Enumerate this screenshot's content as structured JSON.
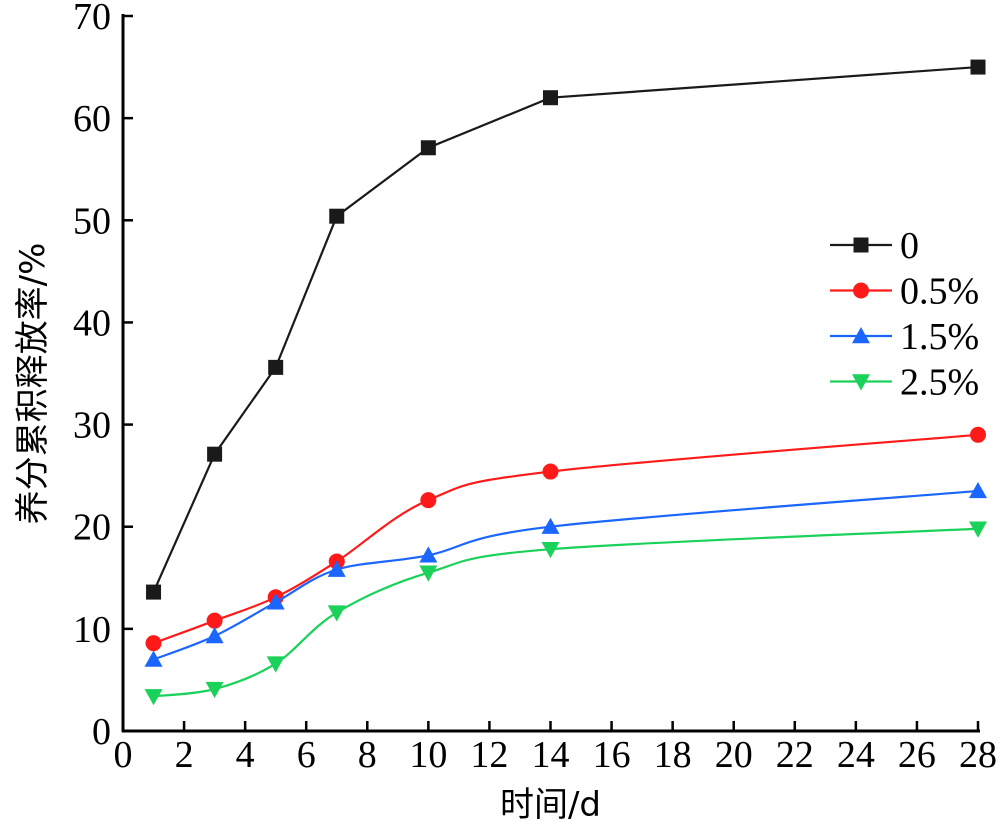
{
  "chart_data": {
    "type": "line",
    "title": "",
    "xlabel": "时间/d",
    "ylabel": "养分累积释放率/%",
    "xlim": [
      0,
      28
    ],
    "ylim": [
      0,
      70
    ],
    "x_ticks": [
      "0",
      "2",
      "4",
      "6",
      "8",
      "10",
      "12",
      "14",
      "16",
      "18",
      "20",
      "22",
      "24",
      "26",
      "28"
    ],
    "y_ticks": [
      "0",
      "10",
      "20",
      "30",
      "40",
      "50",
      "60",
      "70"
    ],
    "grid": false,
    "legend_position": "right",
    "series": [
      {
        "name": "0",
        "color": "#1a1a1a",
        "marker": "square",
        "x": [
          1,
          3,
          5,
          7,
          10,
          14,
          28
        ],
        "values": [
          13.6,
          27.1,
          35.6,
          50.4,
          57.1,
          62.0,
          65.0
        ]
      },
      {
        "name": "0.5%",
        "color": "#ff1a1a",
        "marker": "circle",
        "x": [
          1,
          3,
          5,
          7,
          10,
          14,
          28
        ],
        "values": [
          8.6,
          10.8,
          13.1,
          16.6,
          22.6,
          25.4,
          29.0
        ]
      },
      {
        "name": "1.5%",
        "color": "#1a66ff",
        "marker": "triangle-up",
        "x": [
          1,
          3,
          5,
          7,
          10,
          14,
          28
        ],
        "values": [
          7.0,
          9.3,
          12.6,
          15.8,
          17.2,
          20.0,
          23.5
        ]
      },
      {
        "name": "2.5%",
        "color": "#1ad15a",
        "marker": "triangle-down",
        "x": [
          1,
          3,
          5,
          7,
          10,
          14,
          28
        ],
        "values": [
          3.4,
          4.1,
          6.6,
          11.6,
          15.5,
          17.8,
          19.8
        ]
      }
    ]
  }
}
